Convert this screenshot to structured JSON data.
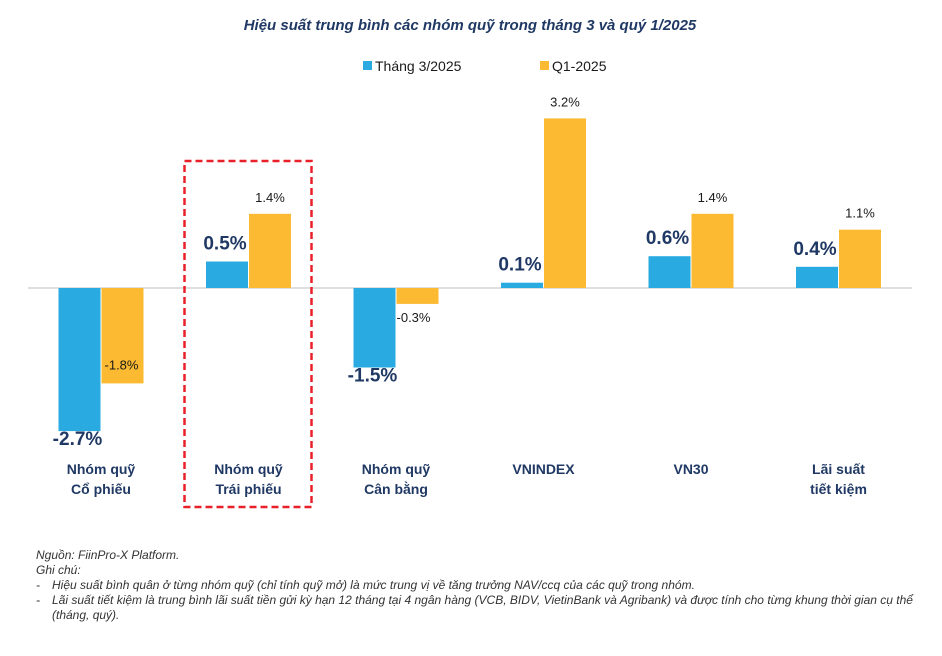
{
  "chart_data": {
    "type": "bar",
    "title": "Hiệu suất trung bình các nhóm quỹ trong tháng 3 và quý 1/2025",
    "categories": [
      [
        "Nhóm quỹ",
        "Cổ phiếu"
      ],
      [
        "Nhóm quỹ",
        "Trái phiếu"
      ],
      [
        "Nhóm quỹ",
        "Cân bằng"
      ],
      [
        "VNINDEX"
      ],
      [
        "VN30"
      ],
      [
        "Lãi suất",
        "tiết kiệm"
      ]
    ],
    "series": [
      {
        "name": "Tháng 3/2025",
        "color": "#29ABE2",
        "values": [
          -2.7,
          0.5,
          -1.5,
          0.1,
          0.6,
          0.4
        ],
        "labels": [
          "-2.7%",
          "0.5%",
          "-1.5%",
          "0.1%",
          "0.6%",
          "0.4%"
        ]
      },
      {
        "name": "Q1-2025",
        "color": "#FBBA31",
        "values": [
          -1.8,
          1.4,
          -0.3,
          3.2,
          1.4,
          1.1
        ],
        "labels": [
          "-1.8%",
          "1.4%",
          "-0.3%",
          "3.2%",
          "1.4%",
          "1.1%"
        ]
      }
    ],
    "ylim": [
      -3.0,
      3.2
    ],
    "highlighted_category_index": 1,
    "highlight_color": "#E8202A",
    "legend_position": "top-center"
  },
  "notes": {
    "source": "Nguồn: FiinPro-X Platform.",
    "header": "Ghi chú:",
    "items": [
      "Hiệu suất bình quân ở từng nhóm quỹ (chỉ tính quỹ mở) là mức trung vị về tăng trưởng NAV/ccq của các quỹ trong nhóm.",
      "Lãi suất tiết kiệm là trung bình lãi suất tiền gửi kỳ hạn 12 tháng tại 4 ngân hàng (VCB, BIDV, VietinBank và Agribank) và được tính cho từng khung thời gian cụ thể (tháng, quý)."
    ],
    "bullet": "-"
  }
}
